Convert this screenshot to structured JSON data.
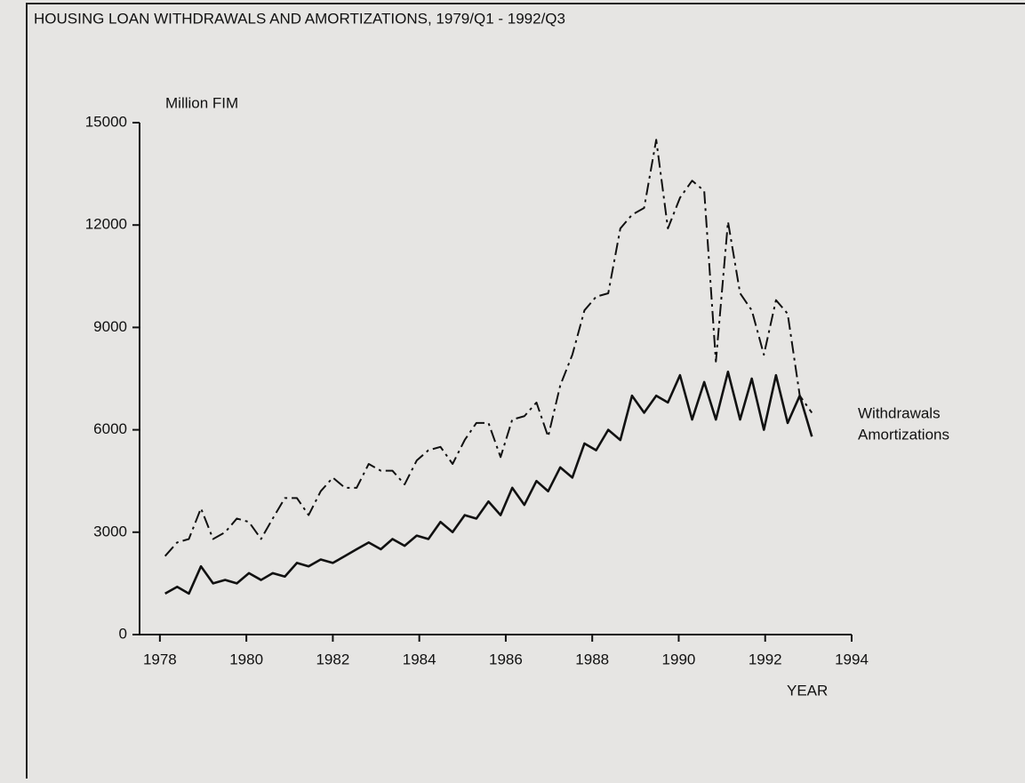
{
  "chart_data": {
    "type": "line",
    "title": "HOUSING LOAN WITHDRAWALS AND AMORTIZATIONS, 1979/Q1 - 1992/Q3",
    "y_label": "Million FIM",
    "x_label": "YEAR",
    "x": [
      1978.12,
      1978.4,
      1978.67,
      1978.95,
      1979.23,
      1979.51,
      1979.78,
      1980.06,
      1980.34,
      1980.61,
      1980.89,
      1981.17,
      1981.44,
      1981.72,
      1982.0,
      1982.28,
      1982.55,
      1982.83,
      1983.11,
      1983.38,
      1983.66,
      1983.94,
      1984.21,
      1984.49,
      1984.77,
      1985.05,
      1985.32,
      1985.6,
      1985.88,
      1986.15,
      1986.43,
      1986.71,
      1986.98,
      1987.26,
      1987.54,
      1987.82,
      1988.09,
      1988.37,
      1988.65,
      1988.92,
      1989.2,
      1989.48,
      1989.75,
      1990.03,
      1990.31,
      1990.59,
      1990.86,
      1991.14,
      1991.42,
      1991.69,
      1991.97,
      1992.25,
      1992.52,
      1992.8,
      1993.08
    ],
    "series": [
      {
        "name": "Withdrawals",
        "color": "#111111",
        "dash": "14 5 3 5",
        "values": [
          2300,
          2700,
          2800,
          3700,
          2800,
          3000,
          3400,
          3300,
          2800,
          3400,
          4000,
          4000,
          3500,
          4200,
          4600,
          4300,
          4300,
          5000,
          4800,
          4800,
          4400,
          5100,
          5400,
          5500,
          5000,
          5700,
          6200,
          6200,
          5200,
          6300,
          6400,
          6800,
          5800,
          7300,
          8200,
          9500,
          9900,
          10000,
          11900,
          12300,
          12500,
          14500,
          11900,
          12800,
          13300,
          13000,
          8000,
          12100,
          10000,
          9500,
          8200,
          9800,
          9400,
          7000,
          6500
        ]
      },
      {
        "name": "Amortizations",
        "color": "#111111",
        "dash": "none",
        "values": [
          1200,
          1400,
          1200,
          2000,
          1500,
          1600,
          1500,
          1800,
          1600,
          1800,
          1700,
          2100,
          2000,
          2200,
          2100,
          2300,
          2500,
          2700,
          2500,
          2800,
          2600,
          2900,
          2800,
          3300,
          3000,
          3500,
          3400,
          3900,
          3500,
          4300,
          3800,
          4500,
          4200,
          4900,
          4600,
          5600,
          5400,
          6000,
          5700,
          7000,
          6500,
          7000,
          6800,
          7600,
          6300,
          7400,
          6300,
          7700,
          6300,
          7500,
          6000,
          7600,
          6200,
          7000,
          5800
        ]
      }
    ],
    "xlim": [
      1977.53,
      1994
    ],
    "xticks": [
      1978,
      1980,
      1982,
      1984,
      1986,
      1988,
      1990,
      1992,
      1994
    ],
    "ylim": [
      0,
      15000
    ],
    "yticks": [
      0,
      3000,
      6000,
      9000,
      12000,
      15000
    ],
    "legend": "right",
    "grid": false
  }
}
